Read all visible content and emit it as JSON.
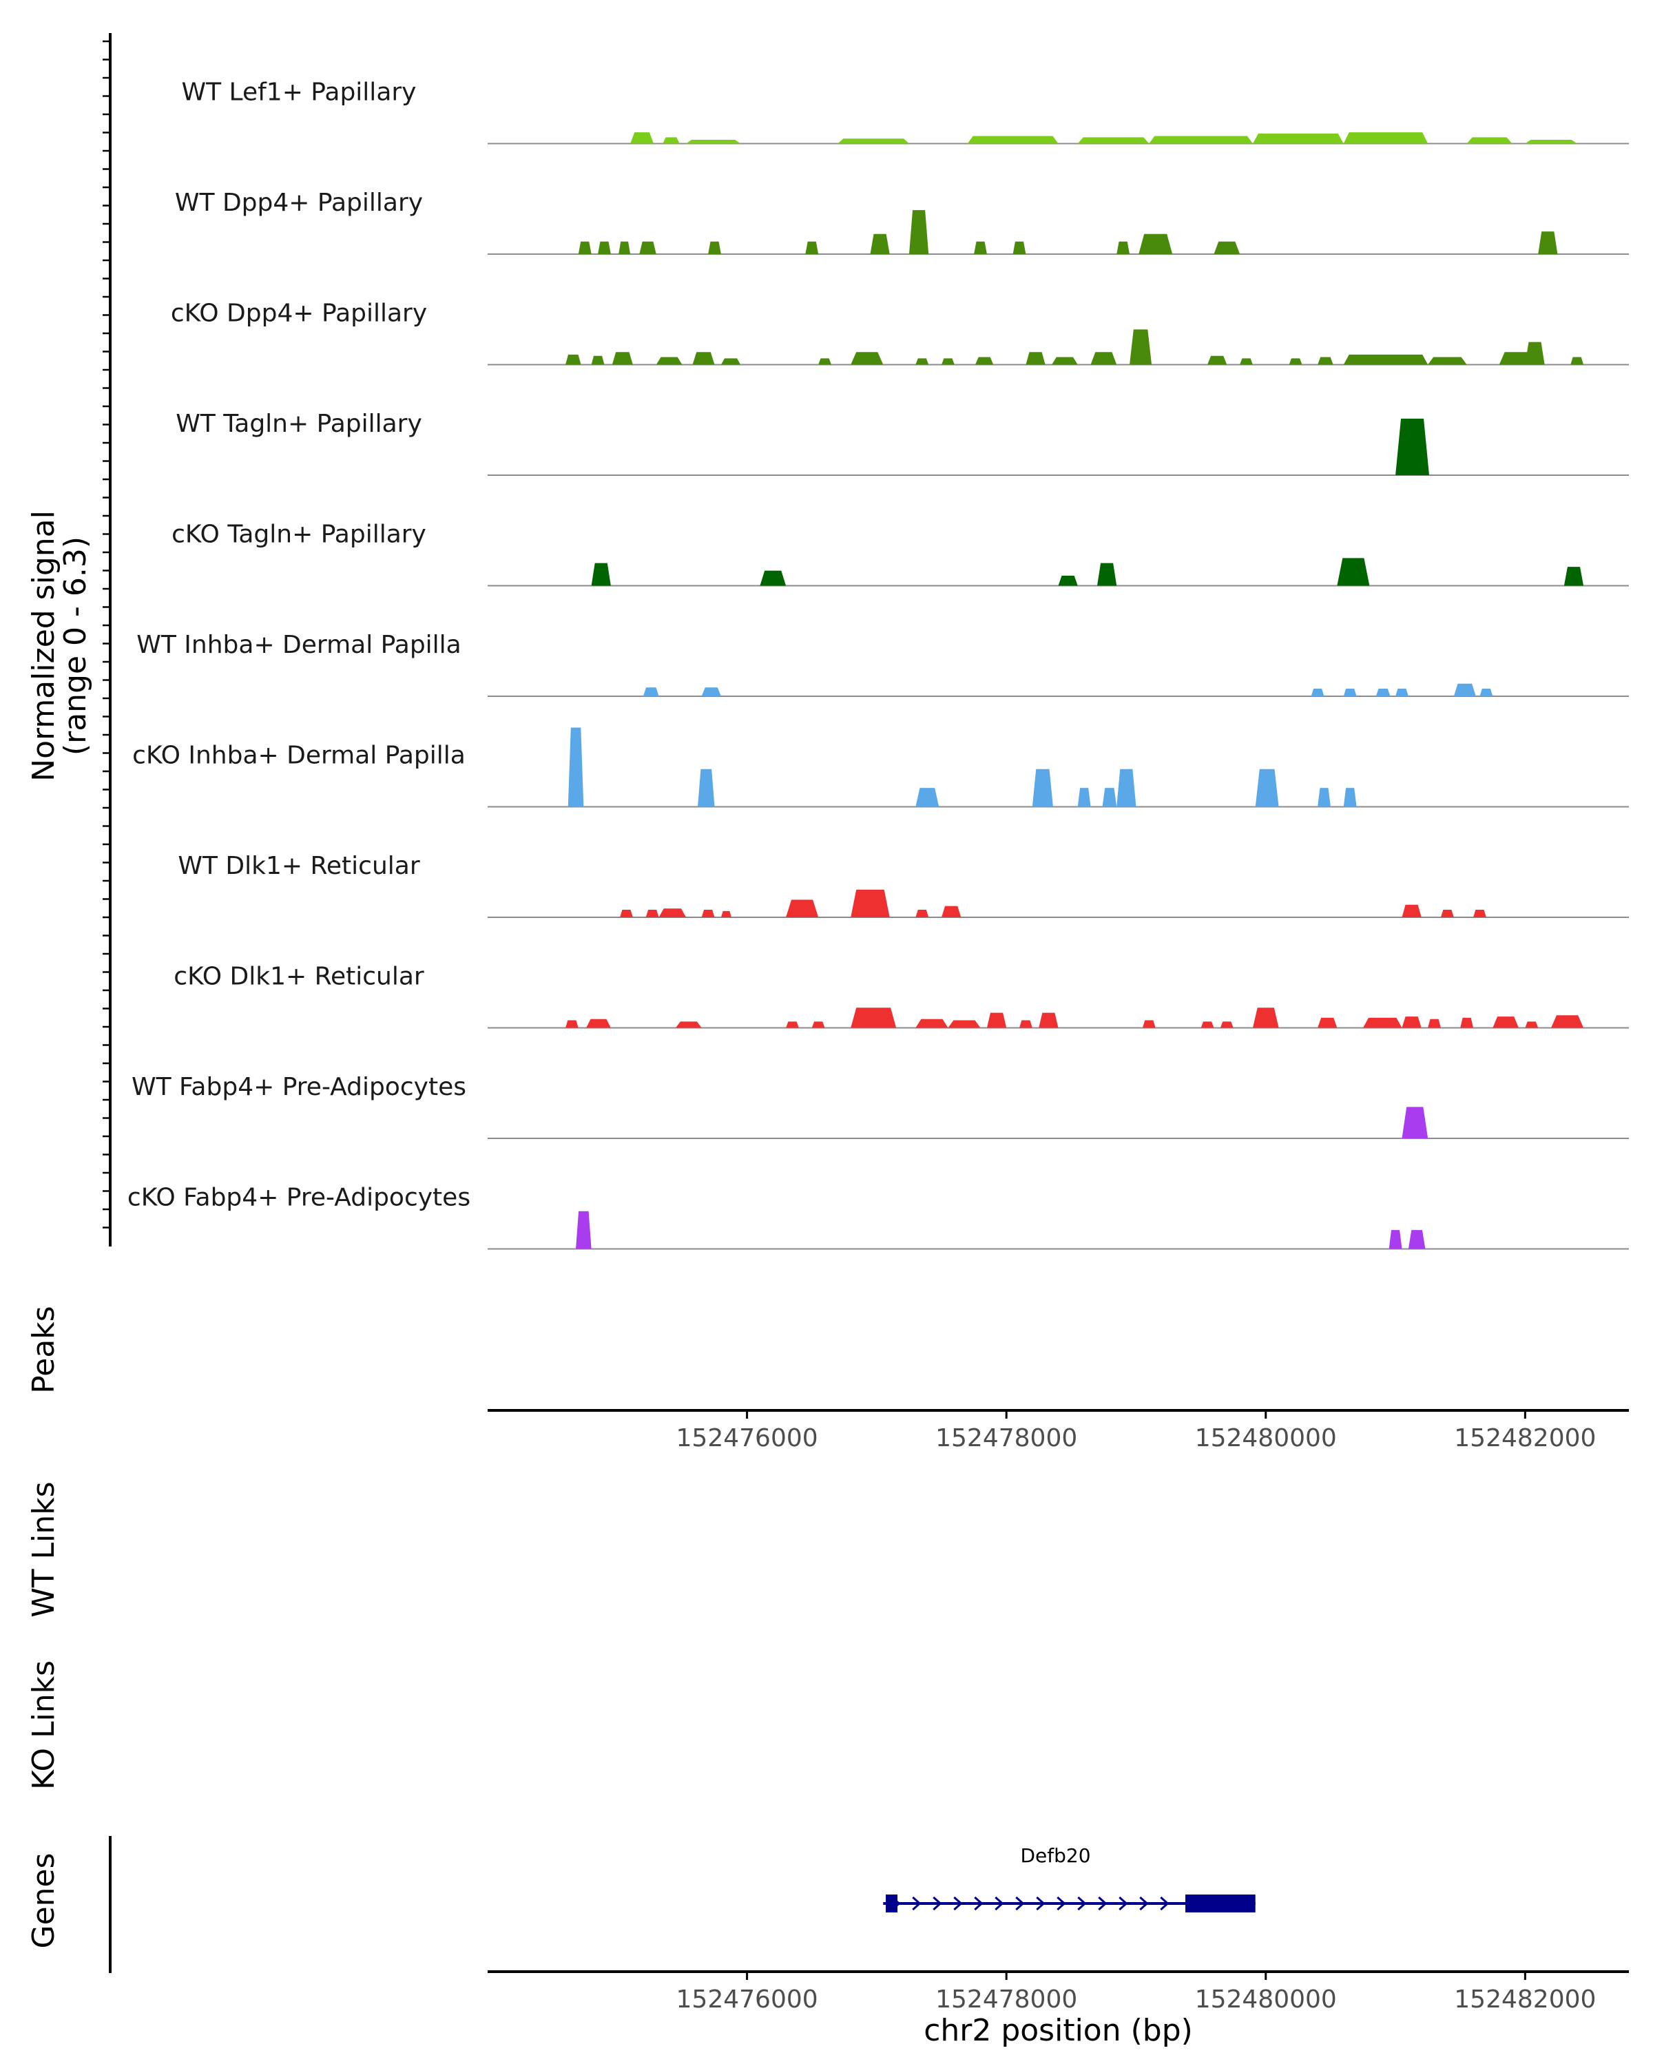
{
  "chart_data": {
    "type": "area",
    "title": "",
    "ylabel_signal": [
      "Normalized signal",
      "(range 0 - 6.3)"
    ],
    "signal_range": [
      0,
      6.3
    ],
    "xlabel": "chr2 position (bp)",
    "xlim": [
      152474200,
      152482800
    ],
    "xticks": [
      152476000,
      152478000,
      152480000,
      152482000
    ],
    "xtick_labels": [
      "152476000",
      "152478000",
      "152480000",
      "152482000"
    ],
    "panel_labels": {
      "peaks": "Peaks",
      "wt_links": "WT Links",
      "ko_links": "KO Links",
      "genes": "Genes"
    },
    "colors": {
      "lime": "#7ccd1a",
      "olive": "#4a8a0a",
      "darkgreen": "#006400",
      "blue": "#5aa8e8",
      "red": "#ee3030",
      "purple": "#a83cee",
      "gene": "#00008b",
      "baseline": "#8c8c8c",
      "axis": "#000000"
    },
    "tracks": [
      {
        "label": "WT Lef1+ Papillary",
        "color": "lime",
        "peaks": [
          [
            152475100,
            152475280,
            0.9
          ],
          [
            152475350,
            152475480,
            0.5
          ],
          [
            152475530,
            152475950,
            0.3
          ],
          [
            152476700,
            152477250,
            0.4
          ],
          [
            152477700,
            152478400,
            0.6
          ],
          [
            152478550,
            152479100,
            0.5
          ],
          [
            152479100,
            152479900,
            0.6
          ],
          [
            152479900,
            152480600,
            0.8
          ],
          [
            152480600,
            152481250,
            0.9
          ],
          [
            152481550,
            152481900,
            0.5
          ],
          [
            152482000,
            152482400,
            0.3
          ]
        ]
      },
      {
        "label": "WT Dpp4+ Papillary",
        "color": "olive",
        "peaks": [
          [
            152474700,
            152474800,
            1.0
          ],
          [
            152474850,
            152474950,
            1.0
          ],
          [
            152475010,
            152475100,
            1.0
          ],
          [
            152475170,
            152475300,
            1.0
          ],
          [
            152475700,
            152475800,
            1.0
          ],
          [
            152476450,
            152476550,
            1.0
          ],
          [
            152476950,
            152477100,
            1.6
          ],
          [
            152477250,
            152477400,
            3.5
          ],
          [
            152477750,
            152477850,
            1.0
          ],
          [
            152478050,
            152478150,
            1.0
          ],
          [
            152478850,
            152478950,
            1.0
          ],
          [
            152479020,
            152479280,
            1.6
          ],
          [
            152479600,
            152479800,
            1.0
          ],
          [
            152482100,
            152482250,
            1.8
          ]
        ]
      },
      {
        "label": "cKO Dpp4+ Papillary",
        "color": "olive",
        "peaks": [
          [
            152474600,
            152474720,
            0.8
          ],
          [
            152474800,
            152474900,
            0.7
          ],
          [
            152474960,
            152475120,
            1.0
          ],
          [
            152475300,
            152475500,
            0.6
          ],
          [
            152475580,
            152475750,
            1.0
          ],
          [
            152475800,
            152475950,
            0.5
          ],
          [
            152476550,
            152476650,
            0.5
          ],
          [
            152476800,
            152477050,
            1.0
          ],
          [
            152477300,
            152477400,
            0.5
          ],
          [
            152477500,
            152477600,
            0.5
          ],
          [
            152477760,
            152477900,
            0.6
          ],
          [
            152478150,
            152478300,
            1.0
          ],
          [
            152478350,
            152478550,
            0.6
          ],
          [
            152478650,
            152478850,
            1.0
          ],
          [
            152478950,
            152479120,
            2.8
          ],
          [
            152479550,
            152479700,
            0.7
          ],
          [
            152479800,
            152479900,
            0.5
          ],
          [
            152480180,
            152480280,
            0.5
          ],
          [
            152480400,
            152480520,
            0.6
          ],
          [
            152480600,
            152481250,
            0.8
          ],
          [
            152481250,
            152481550,
            0.6
          ],
          [
            152481800,
            152482100,
            1.0
          ],
          [
            152482000,
            152482150,
            1.8
          ],
          [
            152482350,
            152482450,
            0.6
          ]
        ]
      },
      {
        "label": "WT Tagln+ Papillary",
        "color": "darkgreen",
        "peaks": [
          [
            152481000,
            152481260,
            4.5
          ]
        ]
      },
      {
        "label": "cKO Tagln+ Papillary",
        "color": "darkgreen",
        "peaks": [
          [
            152474800,
            152474950,
            1.8
          ],
          [
            152476100,
            152476300,
            1.2
          ],
          [
            152478400,
            152478550,
            0.8
          ],
          [
            152478700,
            152478850,
            1.8
          ],
          [
            152480550,
            152480800,
            2.2
          ],
          [
            152482300,
            152482450,
            1.5
          ]
        ]
      },
      {
        "label": "WT Inhba+ Dermal Papilla",
        "color": "blue",
        "peaks": [
          [
            152475200,
            152475320,
            0.7
          ],
          [
            152475650,
            152475800,
            0.7
          ],
          [
            152480350,
            152480450,
            0.6
          ],
          [
            152480600,
            152480700,
            0.6
          ],
          [
            152480850,
            152480960,
            0.6
          ],
          [
            152481000,
            152481100,
            0.6
          ],
          [
            152481450,
            152481620,
            1.0
          ],
          [
            152481650,
            152481750,
            0.6
          ]
        ]
      },
      {
        "label": "cKO Inhba+ Dermal Papilla",
        "color": "blue",
        "peaks": [
          [
            152474620,
            152474740,
            6.3
          ],
          [
            152475620,
            152475750,
            3.0
          ],
          [
            152477300,
            152477480,
            1.5
          ],
          [
            152478200,
            152478360,
            3.0
          ],
          [
            152478550,
            152478650,
            1.5
          ],
          [
            152478740,
            152478850,
            1.5
          ],
          [
            152478850,
            152479000,
            3.0
          ],
          [
            152479920,
            152480100,
            3.0
          ],
          [
            152480400,
            152480500,
            1.5
          ],
          [
            152480600,
            152480700,
            1.5
          ]
        ]
      },
      {
        "label": "WT Dlk1+ Reticular",
        "color": "red",
        "peaks": [
          [
            152475020,
            152475120,
            0.6
          ],
          [
            152475220,
            152475320,
            0.6
          ],
          [
            152475320,
            152475530,
            0.7
          ],
          [
            152475650,
            152475750,
            0.6
          ],
          [
            152475800,
            152475880,
            0.5
          ],
          [
            152476300,
            152476550,
            1.4
          ],
          [
            152476800,
            152477100,
            2.2
          ],
          [
            152477300,
            152477400,
            0.6
          ],
          [
            152477500,
            152477650,
            0.9
          ],
          [
            152481050,
            152481200,
            1.0
          ],
          [
            152481350,
            152481450,
            0.6
          ],
          [
            152481600,
            152481700,
            0.6
          ]
        ]
      },
      {
        "label": "cKO Dlk1+ Reticular",
        "color": "red",
        "peaks": [
          [
            152474600,
            152474700,
            0.6
          ],
          [
            152474760,
            152474950,
            0.7
          ],
          [
            152475450,
            152475650,
            0.5
          ],
          [
            152476300,
            152476400,
            0.5
          ],
          [
            152476500,
            152476600,
            0.5
          ],
          [
            152476800,
            152477150,
            1.6
          ],
          [
            152477300,
            152477550,
            0.7
          ],
          [
            152477550,
            152477800,
            0.6
          ],
          [
            152477850,
            152478000,
            1.2
          ],
          [
            152478100,
            152478200,
            0.6
          ],
          [
            152478250,
            152478400,
            1.2
          ],
          [
            152479050,
            152479150,
            0.6
          ],
          [
            152479500,
            152479600,
            0.5
          ],
          [
            152479650,
            152479750,
            0.5
          ],
          [
            152479900,
            152480100,
            1.6
          ],
          [
            152480400,
            152480550,
            0.8
          ],
          [
            152480750,
            152481050,
            0.8
          ],
          [
            152481050,
            152481200,
            0.9
          ],
          [
            152481250,
            152481350,
            0.7
          ],
          [
            152481500,
            152481600,
            0.8
          ],
          [
            152481750,
            152481950,
            0.9
          ],
          [
            152482000,
            152482100,
            0.5
          ],
          [
            152482200,
            152482450,
            1.0
          ]
        ]
      },
      {
        "label": "WT Fabp4+ Pre-Adipocytes",
        "color": "purple",
        "peaks": [
          [
            152481050,
            152481250,
            2.5
          ]
        ]
      },
      {
        "label": "cKO Fabp4+ Pre-Adipocytes",
        "color": "purple",
        "peaks": [
          [
            152474680,
            152474800,
            3.0
          ],
          [
            152480950,
            152481050,
            1.5
          ],
          [
            152481100,
            152481230,
            1.5
          ]
        ]
      }
    ],
    "gene": {
      "name": "Defb20",
      "start": 152477050,
      "end": 152479920,
      "exons": [
        [
          152477070,
          152477160
        ],
        [
          152479380,
          152479920
        ]
      ],
      "strand": "+"
    }
  }
}
